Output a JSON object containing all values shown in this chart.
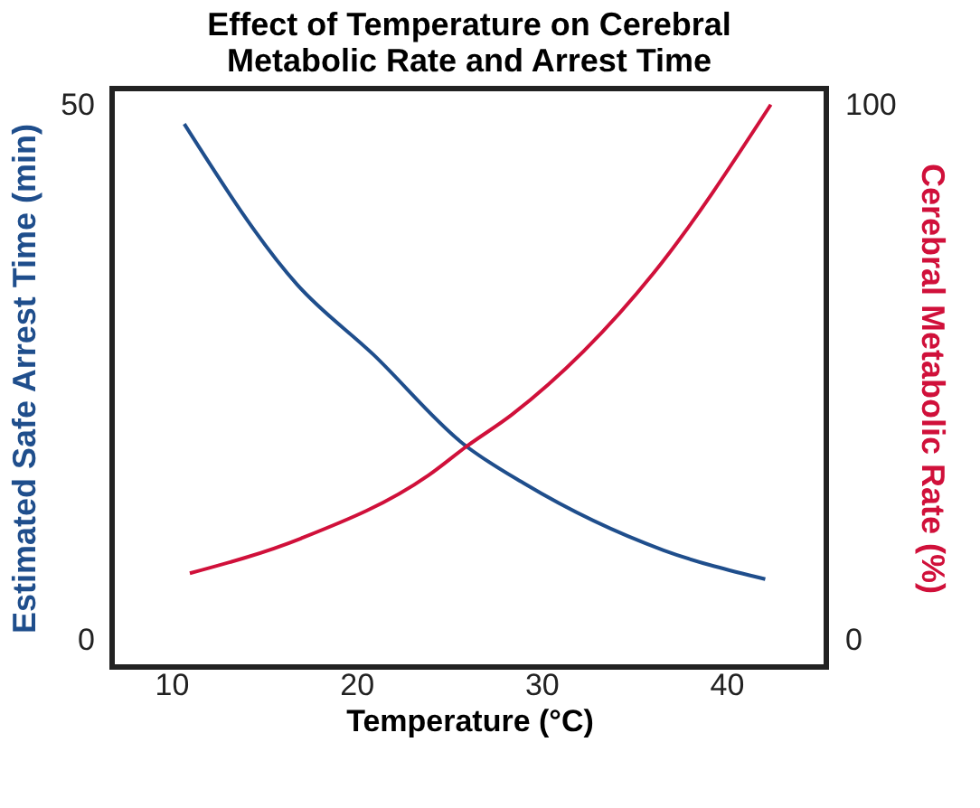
{
  "chart_data": {
    "type": "line",
    "title": "Effect of Temperature on Cerebral\nMetabolic Rate and Arrest Time",
    "xlabel": "Temperature (°C)",
    "ylabel": "Estimated Safe Arrest Time (min)",
    "y2label": "Cerebral Metabolic Rate (%)",
    "xlim": [
      6.8,
      45.4
    ],
    "xticks": [
      10,
      20,
      30,
      40
    ],
    "ylim": [
      -2.5,
      51.5
    ],
    "yticks": [
      0,
      50
    ],
    "y2lim": [
      -5,
      103
    ],
    "y2ticks": [
      0,
      100
    ],
    "grid": false,
    "marker": "none",
    "line_style": "solid",
    "series": [
      {
        "color": "#1f4e8c",
        "x": [
          10.7,
          16.8,
          20.9,
          25.8,
          29.1,
          36.6,
          42.1
        ],
        "values": [
          48.2,
          33.2,
          26.7,
          18.3,
          14.6,
          8.4,
          5.7
        ]
      },
      {
        "color": "#d0103a",
        "axis": "y2",
        "x": [
          11.0,
          17.0,
          23.9,
          26.0,
          28.4,
          36.1,
          42.4
        ],
        "values": [
          12.5,
          19,
          30.8,
          36.3,
          42.1,
          68.7,
          100
        ]
      }
    ]
  }
}
